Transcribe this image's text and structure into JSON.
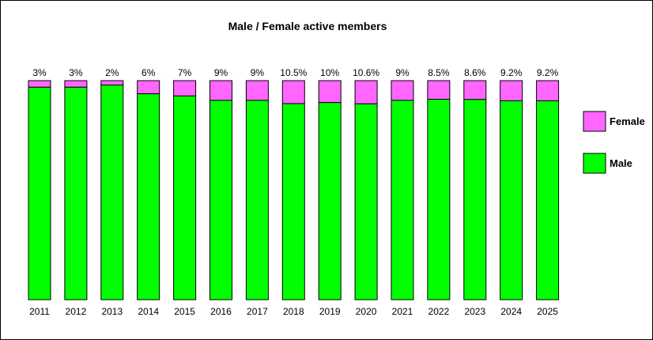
{
  "chart_data": {
    "type": "bar",
    "stacked": true,
    "title": "Male / Female active members",
    "categories": [
      "2011",
      "2012",
      "2013",
      "2014",
      "2015",
      "2016",
      "2017",
      "2018",
      "2019",
      "2020",
      "2021",
      "2022",
      "2023",
      "2024",
      "2025"
    ],
    "series": [
      {
        "name": "Male",
        "color": "#00ff00",
        "values": [
          97,
          97,
          98,
          94,
          93,
          91,
          91,
          89.5,
          90,
          89.4,
          91,
          91.5,
          91.4,
          90.8,
          90.8
        ]
      },
      {
        "name": "Female",
        "color": "#ff66ff",
        "values": [
          3,
          3,
          2,
          6,
          7,
          9,
          9,
          10.5,
          10,
          10.6,
          9,
          8.5,
          8.6,
          9.2,
          9.2
        ]
      }
    ],
    "data_labels": [
      "3%",
      "3%",
      "2%",
      "6%",
      "7%",
      "9%",
      "9%",
      "10.5%",
      "10%",
      "10.6%",
      "9%",
      "8.5%",
      "8.6%",
      "9.2%",
      "9.2%"
    ],
    "ylim": [
      0,
      100
    ],
    "grid": false,
    "legend": [
      "Female",
      "Male"
    ],
    "legend_position": "right"
  }
}
